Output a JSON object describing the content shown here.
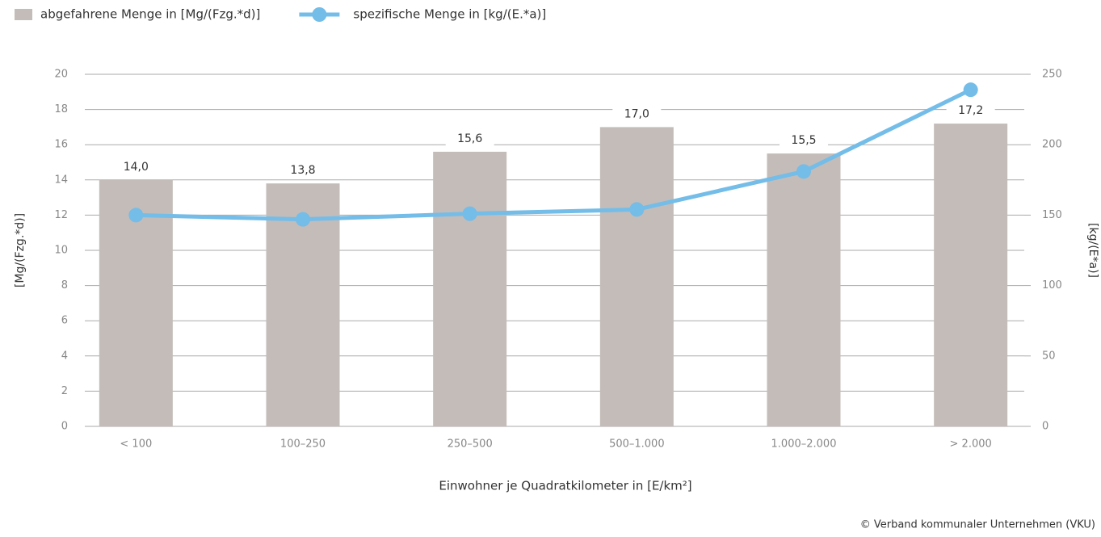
{
  "chart_data": {
    "type": "bar_line",
    "categories": [
      "< 100",
      "100–250",
      "250–500",
      "500–1.000",
      "1.000–2.000",
      "> 2.000"
    ],
    "series": [
      {
        "name": "abgefahrene Menge in [Mg/(Fzg.*d)]",
        "type": "bar",
        "color": "#c4bcb9",
        "values": [
          14.0,
          13.8,
          15.6,
          17.0,
          15.5,
          17.2
        ],
        "value_labels": [
          "14,0",
          "13,8",
          "15,6",
          "17,0",
          "15,5",
          "17,2"
        ]
      },
      {
        "name": "spezifische Menge in [kg/(E.*a)]",
        "type": "line",
        "axis": "y2",
        "color": "#73bde8",
        "values": [
          150,
          147,
          151,
          154,
          181,
          239
        ]
      }
    ],
    "xlabel": "Einwohner je Quadratkilometer in [E/km²]",
    "ylabel": "[Mg/(Fzg.*d)]",
    "y2label": "[kg/(E*a)]",
    "ylim": [
      0,
      20
    ],
    "yticks": [
      0,
      2,
      4,
      6,
      8,
      10,
      12,
      14,
      16,
      18,
      20
    ],
    "y2lim": [
      0,
      250
    ],
    "y2ticks": [
      0,
      50,
      100,
      150,
      200,
      250
    ],
    "grid": true,
    "source": "© Verband kommunaler Unternehmen (VKU)"
  }
}
